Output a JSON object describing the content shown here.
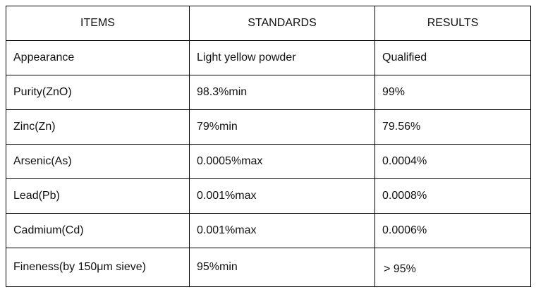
{
  "headers": [
    "ITEMS",
    "STANDARDS",
    "RESULTS"
  ],
  "rows": [
    {
      "item": "Appearance",
      "standard": "Light yellow powder",
      "result": "Qualified"
    },
    {
      "item": "Purity(ZnO)",
      "standard": "98.3%min",
      "result": "99%"
    },
    {
      "item": "Zinc(Zn)",
      "standard": "79%min",
      "result": "79.56%"
    },
    {
      "item": "Arsenic(As)",
      "standard": "0.0005%max",
      "result": "0.0004%"
    },
    {
      "item": "Lead(Pb)",
      "standard": "0.001%max",
      "result": "0.0008%"
    },
    {
      "item": "Cadmium(Cd)",
      "standard": "0.001%max",
      "result": "0.0006%"
    },
    {
      "item": "Fineness(by 150μm sieve)",
      "standard": "95%min",
      "result": "> 95%"
    }
  ]
}
